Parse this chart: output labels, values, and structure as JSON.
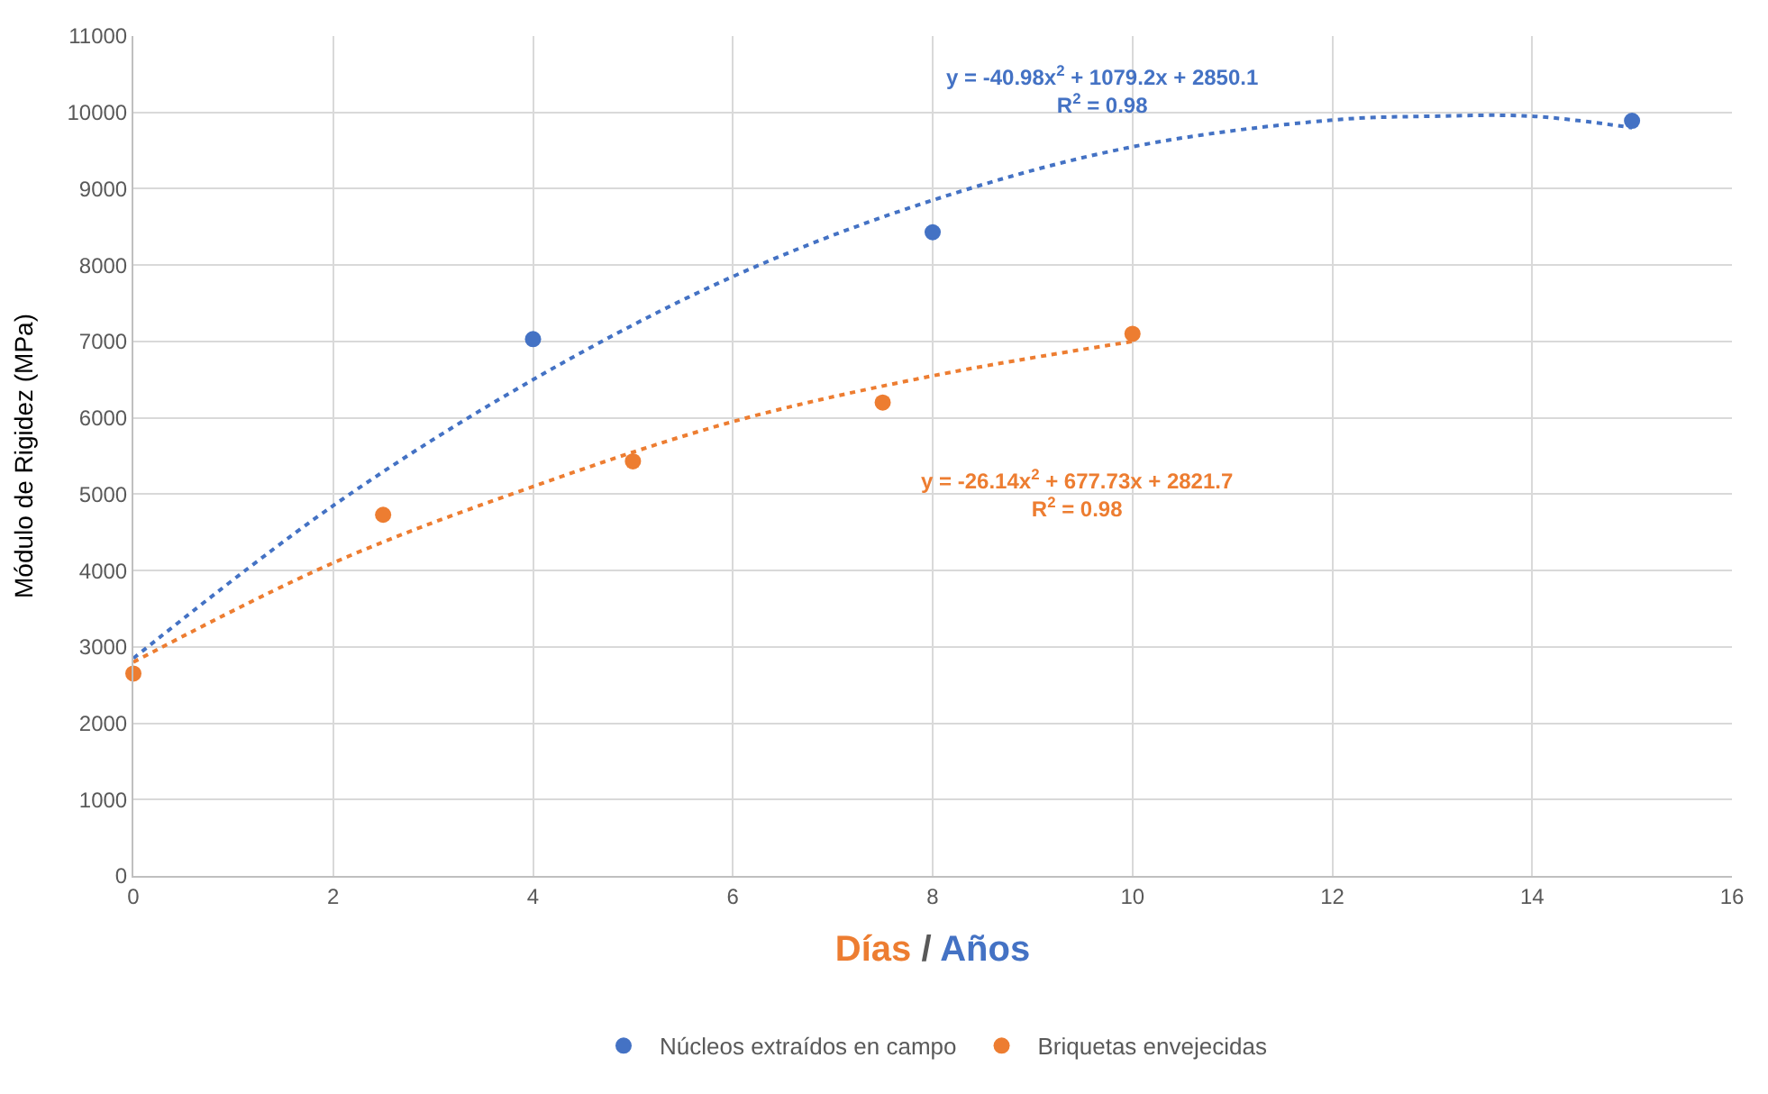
{
  "chart_data": {
    "type": "scatter",
    "xlabel": "Días / Años",
    "ylabel": "Módulo de Rigidez (MPa)",
    "xlim": [
      0,
      16
    ],
    "xticks": [
      0,
      2,
      4,
      6,
      8,
      10,
      12,
      14,
      16
    ],
    "ylim": [
      0,
      11000
    ],
    "yticks": [
      0,
      1000,
      2000,
      3000,
      4000,
      5000,
      6000,
      7000,
      8000,
      9000,
      10000,
      11000
    ],
    "grid": true,
    "legend": "bottom",
    "marker": "circle",
    "series": [
      {
        "name": "Núcleos extraídos en campo",
        "color": "#4472c4",
        "x": [
          4,
          8,
          15
        ],
        "values": [
          7030,
          8430,
          9890
        ]
      },
      {
        "name": "Briquetas envejecidas",
        "color": "#ed7d31",
        "x": [
          0,
          2.5,
          5,
          7.5,
          10
        ],
        "values": [
          2650,
          4730,
          5430,
          6200,
          7100
        ]
      },
      {
        "type": "line",
        "color": "#4472c4",
        "line_style": "dotted",
        "marker": "none",
        "x": [
          0,
          2,
          4,
          6,
          8,
          10,
          12,
          13,
          14,
          15
        ],
        "values": [
          2850,
          4850,
          6500,
          7850,
          8850,
          9550,
          9900,
          9950,
          9950,
          9800
        ]
      },
      {
        "type": "line",
        "color": "#ed7d31",
        "line_style": "dotted",
        "marker": "none",
        "x": [
          0,
          2,
          4,
          6,
          8,
          10
        ],
        "values": [
          2800,
          4100,
          5100,
          5950,
          6550,
          7000
        ]
      }
    ],
    "annotations": [
      "y = -40.98x$^{2}$ + 1079.2x + 2850.1\nR$^{2}$ = 0.98",
      "y = -26.14x$^{2}$ + 677.73x + 2821.7\nR$^{2}$ = 0.98"
    ]
  }
}
